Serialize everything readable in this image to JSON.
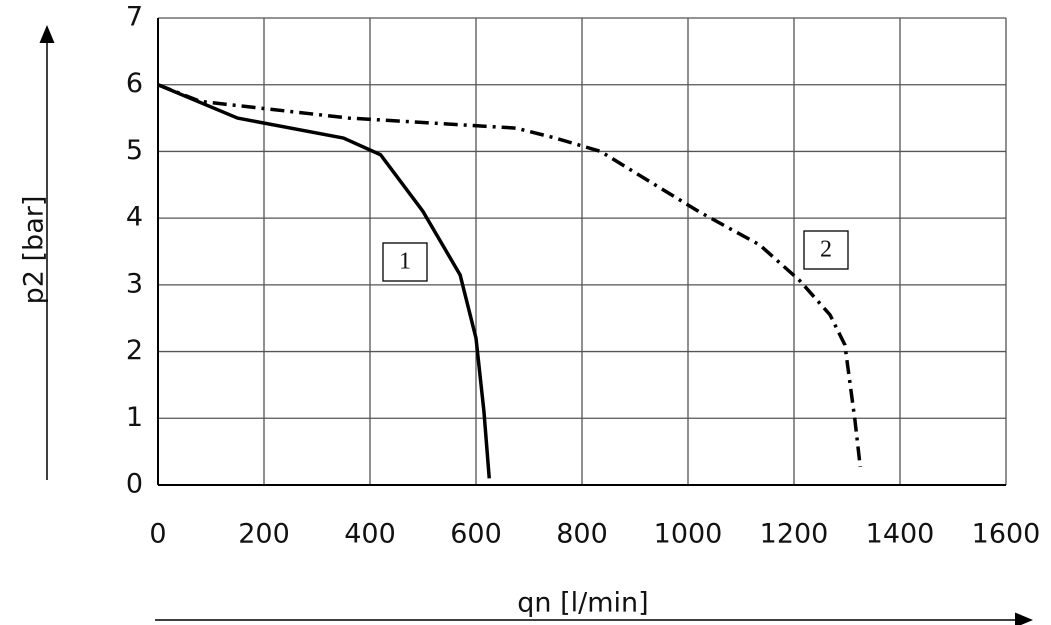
{
  "chart_data": {
    "type": "line",
    "xlabel": "qn [l/min]",
    "ylabel": "p2 [bar]",
    "xlim": [
      0,
      1600
    ],
    "xticks": [
      0,
      200,
      400,
      600,
      800,
      1000,
      1200,
      1400,
      1600
    ],
    "ylim": [
      0,
      7
    ],
    "yticks": [
      0,
      1,
      2,
      3,
      4,
      5,
      6,
      7
    ],
    "grid": true,
    "series": [
      {
        "name": "1",
        "color": "#000000",
        "style": "solid",
        "x": [
          0,
          150,
          350,
          420,
          500,
          570,
          600,
          615,
          625
        ],
        "values": [
          6,
          5.5,
          5.2,
          4.95,
          4.1,
          3.15,
          2.2,
          1.1,
          0.1
        ]
      },
      {
        "name": "2",
        "color": "#000000",
        "style": "dashdot",
        "x": [
          0,
          80,
          360,
          675,
          750,
          835,
          1020,
          1135,
          1210,
          1268,
          1296,
          1315,
          1325
        ],
        "values": [
          6,
          5.75,
          5.5,
          5.35,
          5.2,
          5.0,
          4.1,
          3.6,
          3.07,
          2.55,
          2.1,
          0.97,
          0.27
        ]
      }
    ]
  }
}
